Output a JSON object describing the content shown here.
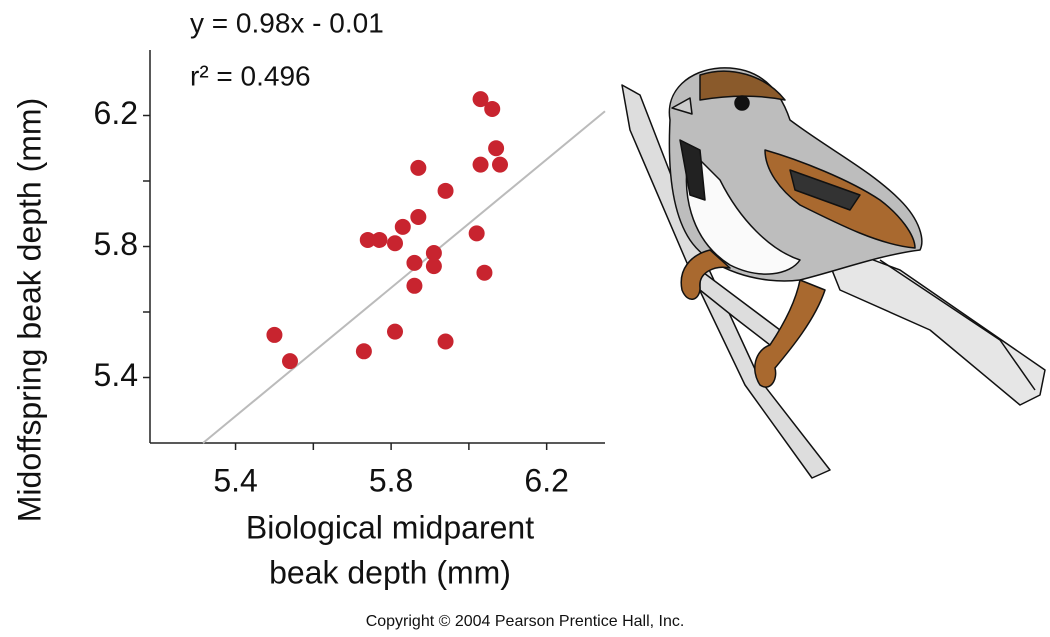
{
  "chart_data": {
    "type": "scatter",
    "annotations": [
      "y = 0.98x - 0.01",
      "r² = 0.496"
    ],
    "fit": {
      "slope": 0.98,
      "intercept": -0.01
    },
    "x_label": [
      "Biological midparent",
      "beak depth (mm)"
    ],
    "y_label": "Midoffspring beak depth (mm)",
    "x": [
      5.5,
      5.54,
      5.73,
      5.74,
      5.77,
      5.81,
      5.81,
      5.83,
      5.86,
      5.86,
      5.87,
      5.87,
      5.91,
      5.91,
      5.94,
      5.94,
      6.02,
      6.03,
      6.03,
      6.04,
      6.06,
      6.07,
      6.08
    ],
    "values": [
      5.53,
      5.45,
      5.48,
      5.82,
      5.82,
      5.81,
      5.54,
      5.86,
      5.75,
      5.68,
      5.89,
      6.04,
      5.78,
      5.74,
      5.51,
      5.97,
      5.84,
      6.25,
      6.05,
      5.72,
      6.22,
      6.1,
      6.05
    ],
    "color": "#c8242f",
    "xlim": [
      5.18,
      6.35
    ],
    "ylim": [
      5.2,
      6.4
    ],
    "xticks": [
      5.4,
      5.8,
      6.2
    ],
    "yticks": [
      5.4,
      5.8,
      6.2
    ],
    "minor_xticks": [
      5.6,
      6.0
    ],
    "minor_yticks": [
      5.6,
      6.0
    ]
  },
  "footer": "Copyright © 2004 Pearson Prentice Hall, Inc."
}
